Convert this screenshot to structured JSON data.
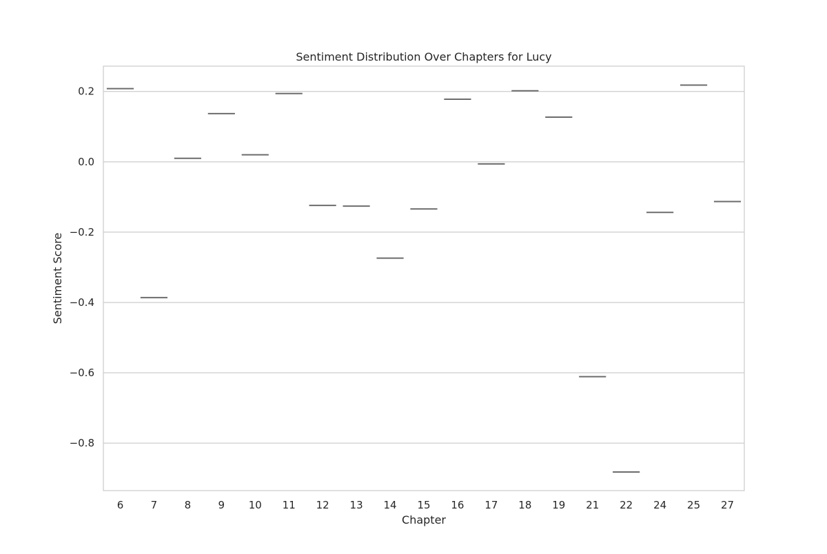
{
  "chart_data": {
    "type": "violin",
    "title": "Sentiment Distribution Over Chapters for Lucy",
    "xlabel": "Chapter",
    "ylabel": "Sentiment Score",
    "categories": [
      "6",
      "7",
      "8",
      "9",
      "10",
      "11",
      "12",
      "13",
      "14",
      "15",
      "16",
      "17",
      "18",
      "19",
      "21",
      "22",
      "24",
      "25",
      "27"
    ],
    "values": [
      0.208,
      -0.386,
      0.01,
      0.137,
      0.02,
      0.194,
      -0.124,
      -0.126,
      -0.274,
      -0.134,
      0.178,
      -0.006,
      0.202,
      0.127,
      -0.611,
      -0.882,
      -0.144,
      0.218,
      -0.113
    ],
    "ylim": [
      -0.935,
      0.272
    ],
    "yticks": [
      -0.8,
      -0.6,
      -0.4,
      -0.2,
      0.0,
      0.2
    ],
    "ytick_labels": [
      "−0.8",
      "−0.6",
      "−0.4",
      "−0.2",
      "0.0",
      "0.2"
    ],
    "grid": true,
    "colors": {
      "mark": "#6b6b6b",
      "grid": "#cccccc",
      "frame": "#cccccc",
      "text": "#262626"
    }
  }
}
